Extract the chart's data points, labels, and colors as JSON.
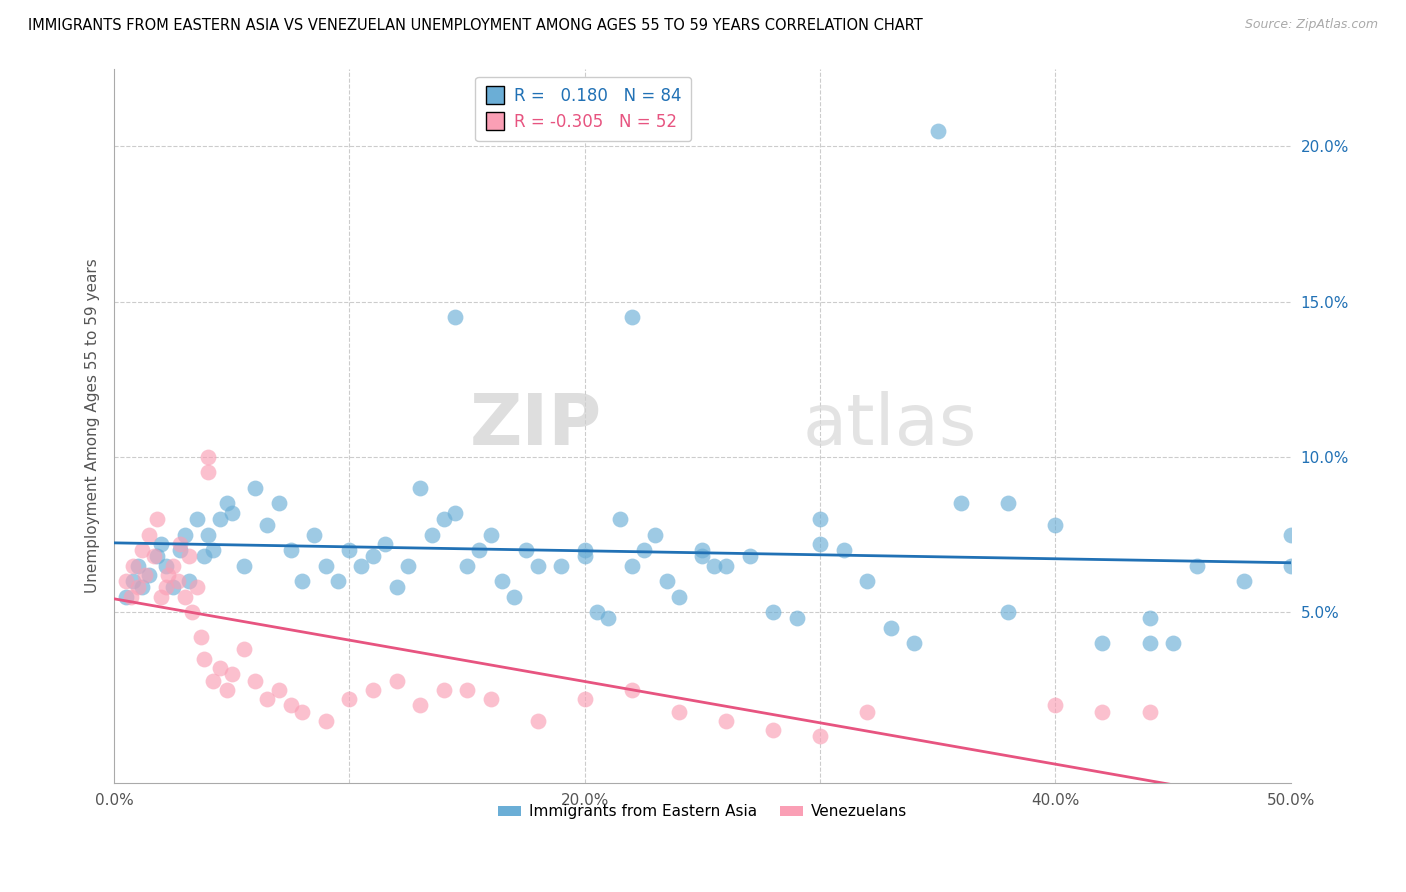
{
  "title": "IMMIGRANTS FROM EASTERN ASIA VS VENEZUELAN UNEMPLOYMENT AMONG AGES 55 TO 59 YEARS CORRELATION CHART",
  "source": "Source: ZipAtlas.com",
  "ylabel": "Unemployment Among Ages 55 to 59 years",
  "xlim": [
    0,
    0.5
  ],
  "ylim": [
    -0.005,
    0.225
  ],
  "yticks_right": [
    0.05,
    0.1,
    0.15,
    0.2
  ],
  "yticklabels_right": [
    "5.0%",
    "10.0%",
    "15.0%",
    "20.0%"
  ],
  "blue_color": "#6baed6",
  "pink_color": "#fa9fb5",
  "blue_line_color": "#2171b5",
  "pink_line_color": "#e75480",
  "legend_R_blue": "0.180",
  "legend_N_blue": "84",
  "legend_R_pink": "-0.305",
  "legend_N_pink": "52",
  "watermark_zip": "ZIP",
  "watermark_atlas": "atlas",
  "blue_x": [
    0.005,
    0.008,
    0.01,
    0.012,
    0.015,
    0.018,
    0.02,
    0.022,
    0.025,
    0.028,
    0.03,
    0.032,
    0.035,
    0.038,
    0.04,
    0.042,
    0.045,
    0.048,
    0.05,
    0.055,
    0.06,
    0.065,
    0.07,
    0.075,
    0.08,
    0.085,
    0.09,
    0.095,
    0.1,
    0.105,
    0.11,
    0.115,
    0.12,
    0.125,
    0.13,
    0.135,
    0.14,
    0.145,
    0.15,
    0.155,
    0.16,
    0.165,
    0.17,
    0.175,
    0.18,
    0.19,
    0.2,
    0.205,
    0.21,
    0.215,
    0.22,
    0.145,
    0.225,
    0.23,
    0.235,
    0.24,
    0.25,
    0.255,
    0.26,
    0.27,
    0.28,
    0.29,
    0.3,
    0.31,
    0.32,
    0.33,
    0.34,
    0.36,
    0.38,
    0.4,
    0.42,
    0.44,
    0.45,
    0.46,
    0.48,
    0.5,
    0.5,
    0.44,
    0.35,
    0.22,
    0.38,
    0.3,
    0.25,
    0.2
  ],
  "blue_y": [
    0.055,
    0.06,
    0.065,
    0.058,
    0.062,
    0.068,
    0.072,
    0.065,
    0.058,
    0.07,
    0.075,
    0.06,
    0.08,
    0.068,
    0.075,
    0.07,
    0.08,
    0.085,
    0.082,
    0.065,
    0.09,
    0.078,
    0.085,
    0.07,
    0.06,
    0.075,
    0.065,
    0.06,
    0.07,
    0.065,
    0.068,
    0.072,
    0.058,
    0.065,
    0.09,
    0.075,
    0.08,
    0.082,
    0.065,
    0.07,
    0.075,
    0.06,
    0.055,
    0.07,
    0.065,
    0.065,
    0.068,
    0.05,
    0.048,
    0.08,
    0.065,
    0.145,
    0.07,
    0.075,
    0.06,
    0.055,
    0.07,
    0.065,
    0.065,
    0.068,
    0.05,
    0.048,
    0.08,
    0.07,
    0.06,
    0.045,
    0.04,
    0.085,
    0.05,
    0.078,
    0.04,
    0.048,
    0.04,
    0.065,
    0.06,
    0.075,
    0.065,
    0.04,
    0.205,
    0.145,
    0.085,
    0.072,
    0.068,
    0.07
  ],
  "pink_x": [
    0.005,
    0.007,
    0.008,
    0.01,
    0.012,
    0.013,
    0.015,
    0.017,
    0.018,
    0.02,
    0.022,
    0.023,
    0.025,
    0.027,
    0.028,
    0.03,
    0.032,
    0.033,
    0.035,
    0.037,
    0.038,
    0.04,
    0.04,
    0.042,
    0.045,
    0.048,
    0.05,
    0.055,
    0.06,
    0.065,
    0.07,
    0.075,
    0.08,
    0.09,
    0.1,
    0.11,
    0.12,
    0.13,
    0.14,
    0.15,
    0.16,
    0.18,
    0.2,
    0.22,
    0.24,
    0.26,
    0.28,
    0.3,
    0.32,
    0.4,
    0.42,
    0.44
  ],
  "pink_y": [
    0.06,
    0.055,
    0.065,
    0.058,
    0.07,
    0.062,
    0.075,
    0.068,
    0.08,
    0.055,
    0.058,
    0.062,
    0.065,
    0.06,
    0.072,
    0.055,
    0.068,
    0.05,
    0.058,
    0.042,
    0.035,
    0.095,
    0.1,
    0.028,
    0.032,
    0.025,
    0.03,
    0.038,
    0.028,
    0.022,
    0.025,
    0.02,
    0.018,
    0.015,
    0.022,
    0.025,
    0.028,
    0.02,
    0.025,
    0.025,
    0.022,
    0.015,
    0.022,
    0.025,
    0.018,
    0.015,
    0.012,
    0.01,
    0.018,
    0.02,
    0.018,
    0.018
  ]
}
